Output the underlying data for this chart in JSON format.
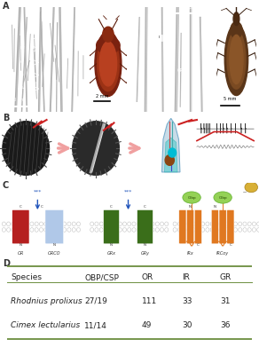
{
  "panel_labels": [
    "A",
    "B",
    "C",
    "D"
  ],
  "table_header": [
    "Species",
    "OBP/CSP",
    "OR",
    "IR",
    "GR"
  ],
  "table_rows": [
    [
      "Rhodnius prolixus",
      "27/19",
      "111",
      "33",
      "31"
    ],
    [
      "Cimex lectularius",
      "11/14",
      "49",
      "30",
      "36"
    ]
  ],
  "table_line_color": "#6b8e3e",
  "bg_color": "#ffffff",
  "panel_label_color": "#333333",
  "red_color": "#b52020",
  "blue_color": "#b0c8e8",
  "green_dark": "#3a6e1a",
  "green_light": "#5a9a2a",
  "orange_color": "#e07820",
  "gray_color": "#888888",
  "arrow_pink": "#f0a0a0",
  "membrane_circle_color": "#bbbbbb"
}
